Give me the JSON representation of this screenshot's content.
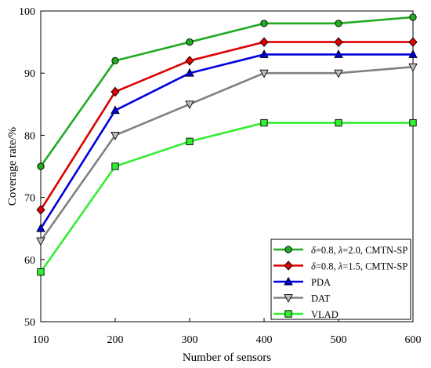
{
  "chart_data": {
    "type": "line",
    "title": "",
    "xlabel": "Number of sensors",
    "ylabel": "Coverage rate/%",
    "x": [
      100,
      200,
      300,
      400,
      500,
      600
    ],
    "xlim": [
      100,
      600
    ],
    "ylim": [
      50,
      100
    ],
    "xticks": [
      "100",
      "200",
      "300",
      "400",
      "500",
      "600"
    ],
    "yticks": [
      "50",
      "60",
      "70",
      "80",
      "90",
      "100"
    ],
    "grid": false,
    "legend_position": "bottom-right",
    "series": [
      {
        "name_parts": [
          {
            "t": "δ",
            "i": true
          },
          {
            "t": "=0.8, ",
            "i": false
          },
          {
            "t": "λ",
            "i": true
          },
          {
            "t": "=2.0, CMTN-SP",
            "i": false
          }
        ],
        "values": [
          75,
          92,
          95,
          98,
          98,
          99
        ],
        "color": "#22aa22",
        "fill": "#22aa22",
        "marker": "circle"
      },
      {
        "name_parts": [
          {
            "t": "δ",
            "i": true
          },
          {
            "t": "=0.8, ",
            "i": false
          },
          {
            "t": "λ",
            "i": true
          },
          {
            "t": "=1.5, CMTN-SP",
            "i": false
          }
        ],
        "values": [
          68,
          87,
          92,
          95,
          95,
          95
        ],
        "color": "#dd0000",
        "fill": "#dd0000",
        "marker": "diamond"
      },
      {
        "name_parts": [
          {
            "t": "PDA",
            "i": false
          }
        ],
        "values": [
          65,
          84,
          90,
          93,
          93,
          93
        ],
        "color": "#0000dd",
        "fill": "#0000dd",
        "marker": "triangle-up"
      },
      {
        "name_parts": [
          {
            "t": "DAT",
            "i": false
          }
        ],
        "values": [
          63,
          80,
          85,
          90,
          90,
          91
        ],
        "color": "#808080",
        "fill": "#bdbdbd",
        "marker": "triangle-down"
      },
      {
        "name_parts": [
          {
            "t": "VLAD",
            "i": false
          }
        ],
        "values": [
          58,
          75,
          79,
          82,
          82,
          82
        ],
        "color": "#33ee33",
        "fill": "#33ee33",
        "marker": "square"
      }
    ]
  }
}
